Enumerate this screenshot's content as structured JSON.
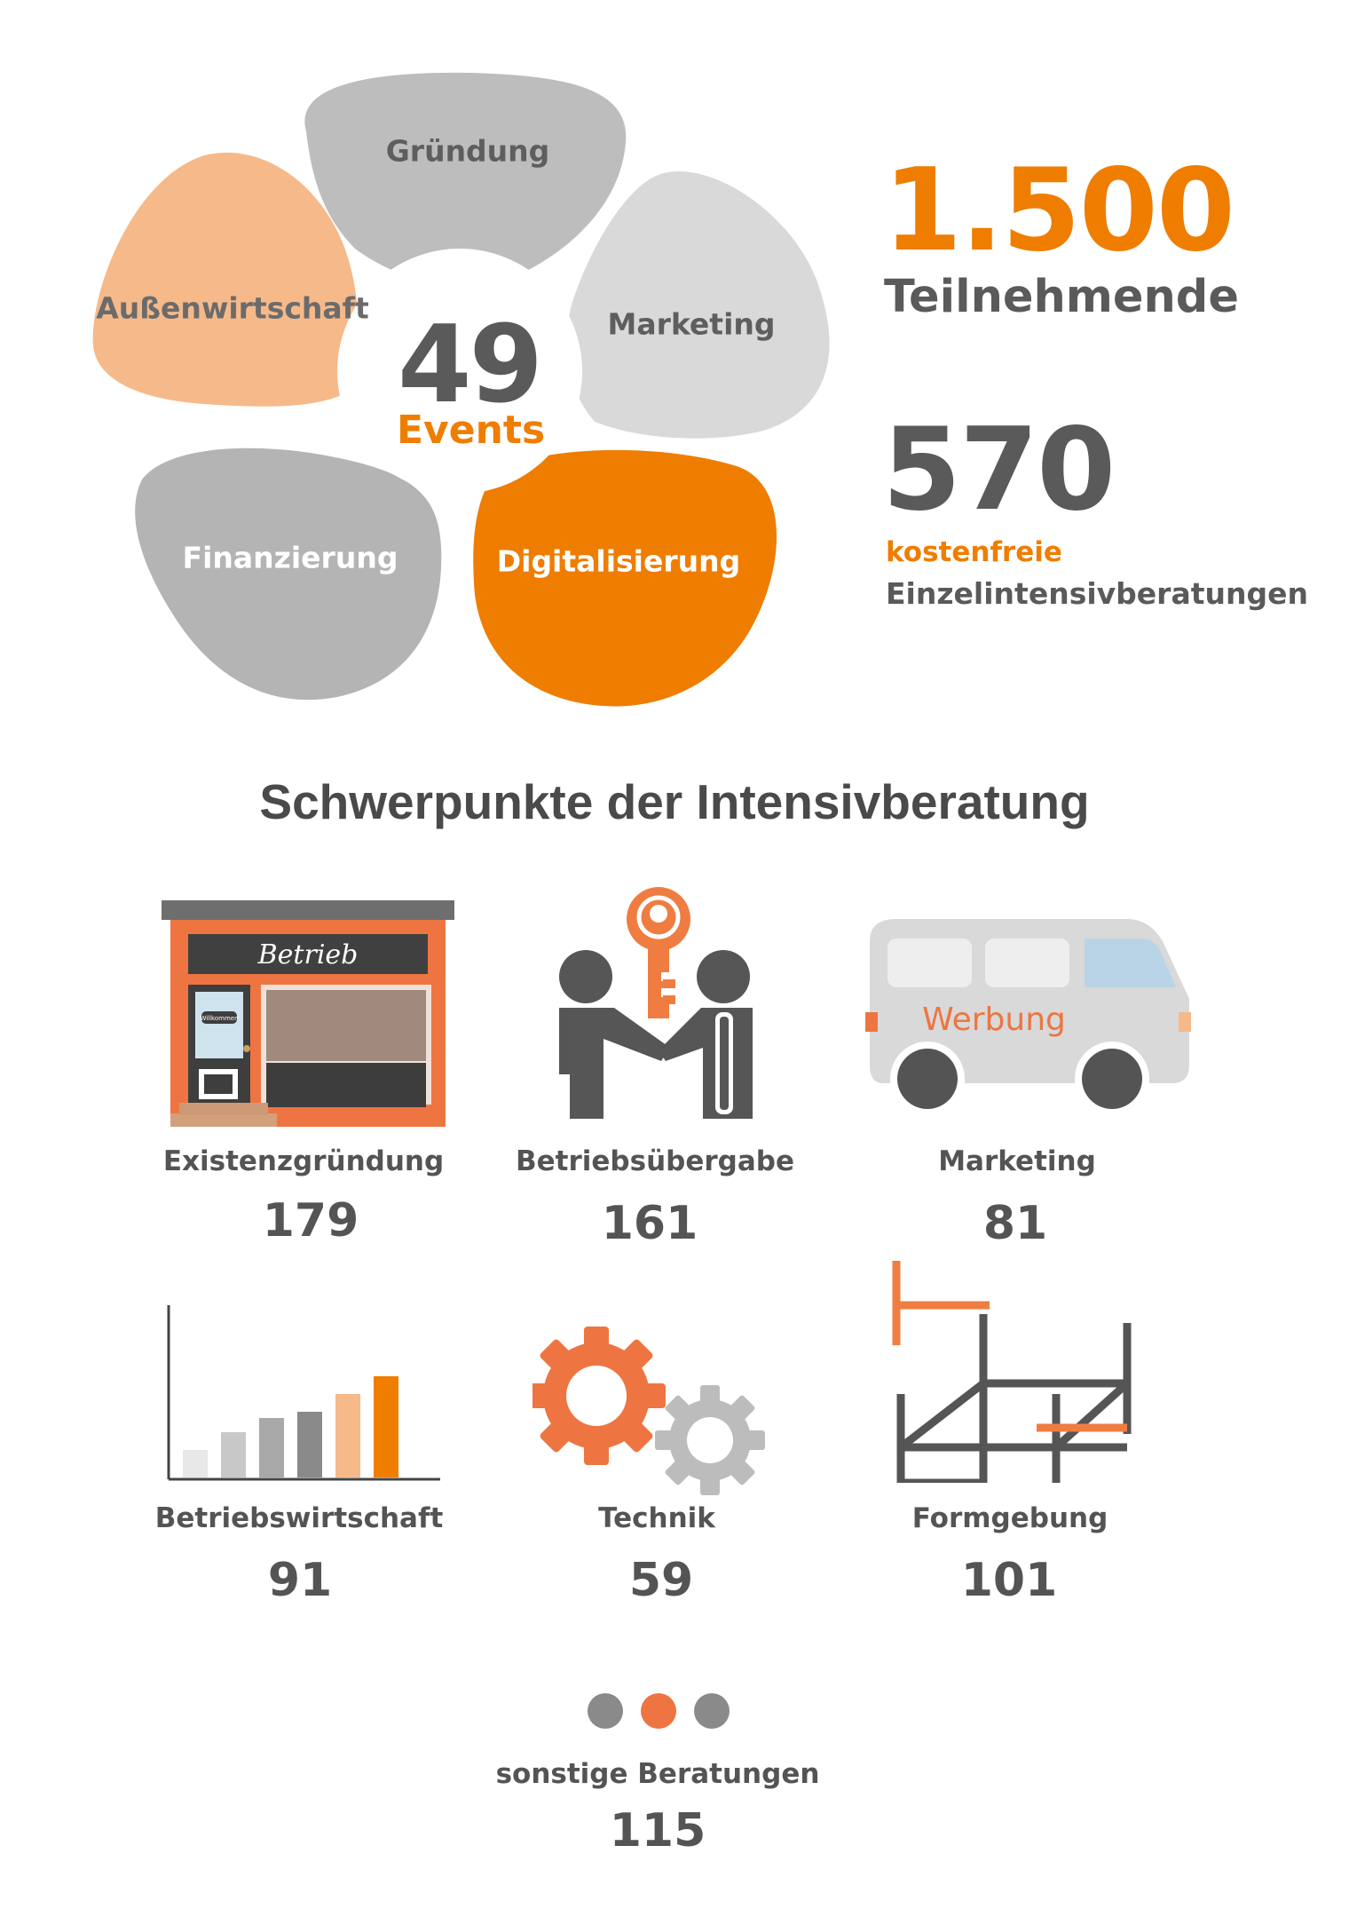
{
  "flower": {
    "center_number": "49",
    "center_label": "Events",
    "petals": [
      {
        "label": "Gründung",
        "color": "#bdbdbd"
      },
      {
        "label": "Marketing",
        "color": "#d9d9d9"
      },
      {
        "label": "Digitalisierung",
        "color": "#ef7d00"
      },
      {
        "label": "Finanzierung",
        "color": "#b4b4b4"
      },
      {
        "label": "Außenwirtschaft",
        "color": "#f6b98a"
      }
    ]
  },
  "stats": {
    "participants_number": "1.500",
    "participants_label": "Teilnehmende",
    "consultations_number": "570",
    "consultations_label_1": "kostenfreie",
    "consultations_label_2": "Einzelintensivberatungen"
  },
  "section_title": "Schwerpunkte der Intensivberatung",
  "categories": [
    {
      "label": "Existenzgründung",
      "value": "179",
      "icon": "shop-icon"
    },
    {
      "label": "Betriebsübergabe",
      "value": "161",
      "icon": "handshake-key-icon"
    },
    {
      "label": "Marketing",
      "value": "81",
      "icon": "van-icon"
    },
    {
      "label": "Betriebswirtschaft",
      "value": "91",
      "icon": "bar-chart-icon"
    },
    {
      "label": "Technik",
      "value": "59",
      "icon": "gears-icon"
    },
    {
      "label": "Formgebung",
      "value": "101",
      "icon": "construction-icon"
    }
  ],
  "icon_text": {
    "shop_sign": "Betrieb",
    "shop_door_sign": "Willkommen",
    "van_text": "Werbung"
  },
  "other": {
    "label": "sonstige Beratungen",
    "value": "115",
    "icon": "dots-icon"
  },
  "colors": {
    "orange": "#ef7d00",
    "light_orange": "#f6b98a",
    "dark_gray": "#545454",
    "text_gray": "#5a5a5a"
  }
}
